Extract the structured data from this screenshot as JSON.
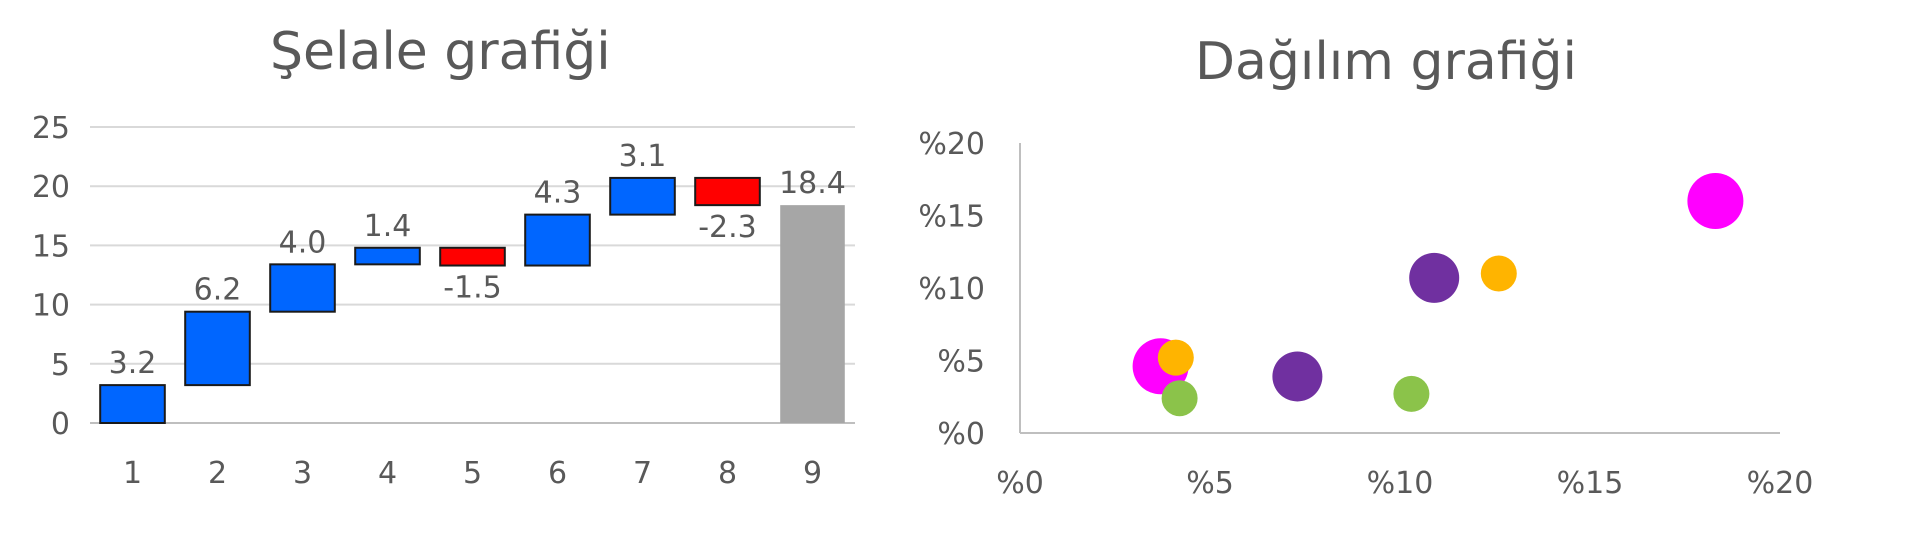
{
  "chart_data": [
    {
      "type": "bar",
      "subtype": "waterfall",
      "title": "Şelale grafiği",
      "categories": [
        "1",
        "2",
        "3",
        "4",
        "5",
        "6",
        "7",
        "8",
        "9"
      ],
      "values": [
        3.2,
        6.2,
        4.0,
        1.4,
        -1.5,
        4.3,
        3.1,
        -2.3,
        18.4
      ],
      "data_labels": [
        "3.2",
        "6.2",
        "4.0",
        "1.4",
        "-1.5",
        "4.3",
        "3.1",
        "-2.3",
        "18.4"
      ],
      "total_index": 8,
      "ylim": [
        0,
        25
      ],
      "yticks": [
        "0",
        "5",
        "10",
        "15",
        "20",
        "25"
      ],
      "grid": true,
      "legend": "none",
      "colors": {
        "increase": "#0066ff",
        "decrease": "#ff0000",
        "total": "#a6a6a6",
        "grid": "#d9d9d9",
        "axis": "#bfbfbf"
      }
    },
    {
      "type": "scatter",
      "subtype": "bubble",
      "title": "Dağılım grafiği",
      "xlim": [
        0,
        20
      ],
      "ylim": [
        0,
        20
      ],
      "xticks": [
        "%0",
        "%5",
        "%10",
        "%15",
        "%20"
      ],
      "yticks": [
        "%0",
        "%5",
        "%10",
        "%15",
        "%20"
      ],
      "grid": false,
      "legend": "none",
      "points": [
        {
          "x": 3.7,
          "y": 4.6,
          "size": "large",
          "color": "#ff00ff"
        },
        {
          "x": 4.1,
          "y": 5.2,
          "size": "small",
          "color": "#ffb400"
        },
        {
          "x": 4.2,
          "y": 2.4,
          "size": "small",
          "color": "#8bc34a"
        },
        {
          "x": 7.3,
          "y": 3.9,
          "size": "medium",
          "color": "#7030a0"
        },
        {
          "x": 10.3,
          "y": 2.7,
          "size": "small",
          "color": "#8bc34a"
        },
        {
          "x": 10.9,
          "y": 10.7,
          "size": "medium",
          "color": "#7030a0"
        },
        {
          "x": 12.6,
          "y": 11.0,
          "size": "small",
          "color": "#ffb400"
        },
        {
          "x": 18.3,
          "y": 16.0,
          "size": "large",
          "color": "#ff00ff"
        }
      ]
    }
  ]
}
